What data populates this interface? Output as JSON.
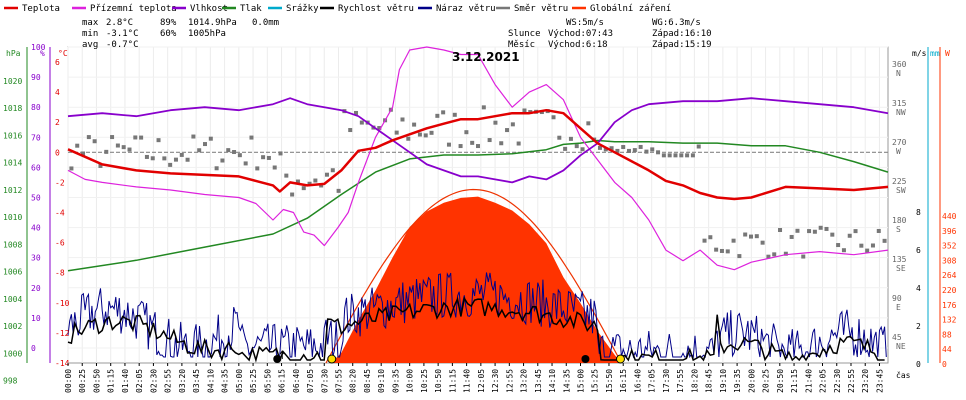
{
  "chart_data": {
    "type": "line",
    "title": "3.12.2021",
    "legend": [
      {
        "label": "Teplota",
        "color": "#e10000"
      },
      {
        "label": "Přízemní teplota",
        "color": "#dd22dd"
      },
      {
        "label": "Vlhkost",
        "color": "#8800cc"
      },
      {
        "label": "Tlak",
        "color": "#228822"
      },
      {
        "label": "Srážky",
        "color": "#00aacc"
      },
      {
        "label": "Rychlost větru",
        "color": "#000000"
      },
      {
        "label": "Náraz větru",
        "color": "#000088"
      },
      {
        "label": "Směr větru",
        "color": "#777777"
      },
      {
        "label": "Globální záření",
        "color": "#ff3300"
      }
    ],
    "stats": {
      "max_label": "max",
      "max_temp": "2.8°C",
      "max_hum": "89%",
      "max_press": "1014.9hPa",
      "rain": "0.0mm",
      "min_label": "min",
      "min_temp": "-3.1°C",
      "min_hum": "60%",
      "min_press": "1005hPa",
      "avg_label": "avg",
      "avg_temp": "-0.7°C",
      "ws": "WS:5m/s",
      "wg": "WG:6.3m/s",
      "sun_label": "Slunce",
      "sunrise": "Východ:07:43",
      "sunset": "Západ:16:10",
      "moon_label": "Měsíc",
      "moonrise": "Východ:6:18",
      "moonset": "Západ:15:19"
    },
    "axes": {
      "hpa_label": "hPa",
      "pct_label": "%",
      "c_label": "°C",
      "ms_label": "m/s",
      "mm_label": "mm",
      "w_label": "W",
      "x_label": "čas",
      "hpa_ticks": [
        "1020",
        "1018",
        "1016",
        "1014",
        "1012",
        "1010",
        "1008",
        "1006",
        "1004",
        "1002",
        "1000",
        "998"
      ],
      "pct_ticks": [
        "100",
        "90",
        "80",
        "70",
        "60",
        "50",
        "40",
        "30",
        "20",
        "10",
        "0"
      ],
      "c_ticks": [
        "6",
        "4",
        "2",
        "0",
        "-2",
        "-4",
        "-6",
        "-8",
        "-10",
        "-12",
        "-14"
      ],
      "dir_ticks": [
        "360",
        "315",
        "270",
        "225",
        "180",
        "135",
        "90",
        "45"
      ],
      "dir_letters": [
        "N",
        "NW",
        "W",
        "SW",
        "S",
        "SE",
        "E",
        "NE"
      ],
      "ms_ticks": [
        "8",
        "6",
        "4",
        "2",
        "0"
      ],
      "w_ticks": [
        "440",
        "396",
        "352",
        "308",
        "264",
        "220",
        "176",
        "132",
        "88",
        "44",
        "0"
      ],
      "x_ticks": [
        "00:00",
        "00:25",
        "00:50",
        "01:15",
        "01:40",
        "02:05",
        "02:30",
        "02:55",
        "03:20",
        "03:45",
        "04:10",
        "04:35",
        "05:00",
        "05:25",
        "05:50",
        "06:15",
        "06:40",
        "07:05",
        "07:30",
        "07:55",
        "08:20",
        "08:45",
        "09:10",
        "09:35",
        "10:00",
        "10:25",
        "10:50",
        "11:15",
        "11:40",
        "12:05",
        "12:30",
        "12:55",
        "13:20",
        "13:45",
        "14:10",
        "14:35",
        "15:00",
        "15:25",
        "15:50",
        "16:15",
        "16:40",
        "17:05",
        "17:30",
        "17:55",
        "18:20",
        "18:45",
        "19:10",
        "19:35",
        "20:00",
        "20:25",
        "20:50",
        "21:15",
        "21:40",
        "22:05",
        "22:30",
        "22:55",
        "23:20",
        "23:45"
      ]
    },
    "series": [
      {
        "name": "Teplota",
        "unit": "°C",
        "x_hours": [
          0,
          0.5,
          1,
          2,
          3,
          4,
          5,
          5.5,
          6,
          6.2,
          6.5,
          7,
          7.5,
          8,
          8.5,
          9,
          9.5,
          10,
          10.5,
          11,
          11.5,
          12,
          12.5,
          13,
          13.5,
          14,
          14.5,
          15,
          15.5,
          16,
          16.5,
          17,
          17.5,
          18,
          18.5,
          19,
          19.5,
          20,
          21,
          22,
          23,
          24
        ],
        "values": [
          0.2,
          -0.3,
          -0.8,
          -1.2,
          -1.4,
          -1.5,
          -1.6,
          -1.9,
          -2.2,
          -2.6,
          -2.0,
          -2.2,
          -2.1,
          -1.2,
          0.1,
          0.3,
          0.8,
          1.2,
          1.6,
          1.9,
          2.2,
          2.2,
          2.4,
          2.6,
          2.6,
          2.8,
          2.6,
          1.6,
          0.6,
          0.0,
          -0.6,
          -1.2,
          -1.9,
          -2.2,
          -2.7,
          -3.0,
          -3.1,
          -3.0,
          -2.3,
          -2.4,
          -2.5,
          -2.3
        ]
      },
      {
        "name": "Přízemní teplota",
        "unit": "°C",
        "x_hours": [
          0,
          0.5,
          1,
          2,
          3,
          4,
          5,
          5.5,
          6,
          6.3,
          6.6,
          6.9,
          7.2,
          7.5,
          7.9,
          8.2,
          8.5,
          9,
          9.5,
          9.7,
          10,
          10.5,
          11,
          11.5,
          12,
          12.5,
          13,
          13.5,
          14,
          14.5,
          15,
          15.5,
          16,
          16.5,
          17,
          17.5,
          18,
          18.5,
          19,
          19.5,
          20,
          21,
          22,
          23,
          24
        ],
        "values": [
          -1.2,
          -1.8,
          -2.0,
          -2.3,
          -2.5,
          -2.8,
          -3.0,
          -3.4,
          -4.5,
          -3.8,
          -4.0,
          -5.3,
          -5.5,
          -6.2,
          -5.0,
          -4.0,
          -2.0,
          1.0,
          3.0,
          5.5,
          6.8,
          7.0,
          6.8,
          6.5,
          6.5,
          4.5,
          3.0,
          4.0,
          4.5,
          3.5,
          1.0,
          -0.5,
          -2.0,
          -3.0,
          -4.5,
          -6.5,
          -7.2,
          -6.5,
          -7.5,
          -7.8,
          -7.3,
          -6.8,
          -6.6,
          -6.8,
          -6.5
        ]
      },
      {
        "name": "Vlhkost",
        "unit": "%",
        "x_hours": [
          0,
          1,
          2,
          3,
          4,
          5,
          6,
          6.5,
          7,
          7.5,
          8,
          8.5,
          9,
          9.5,
          10,
          10.5,
          11,
          11.5,
          12,
          12.5,
          13,
          13.5,
          14,
          14.5,
          15,
          15.5,
          16,
          16.5,
          17,
          18,
          19,
          20,
          21,
          22,
          23,
          24
        ],
        "values": [
          82,
          83,
          82,
          84,
          85,
          84,
          86,
          88,
          86,
          85,
          84,
          82,
          78,
          74,
          70,
          66,
          64,
          62,
          62,
          61,
          60,
          62,
          61,
          64,
          69,
          73,
          80,
          84,
          86,
          87,
          87,
          88,
          87,
          86,
          85,
          83
        ]
      },
      {
        "name": "Tlak",
        "unit": "hPa",
        "x_hours": [
          0,
          2,
          4,
          6,
          7,
          8,
          9,
          10,
          11,
          12,
          13,
          14,
          14.5,
          15,
          15.5,
          16,
          17,
          18,
          19,
          20,
          21,
          22,
          23,
          24
        ],
        "values": [
          1005.0,
          1005.8,
          1006.8,
          1007.8,
          1009.0,
          1010.8,
          1012.5,
          1013.5,
          1013.8,
          1013.8,
          1013.9,
          1014.2,
          1014.6,
          1014.7,
          1014.9,
          1014.8,
          1014.8,
          1014.7,
          1014.7,
          1014.5,
          1014.5,
          1014.0,
          1013.3,
          1012.5
        ]
      },
      {
        "name": "Globální záření",
        "unit": "W",
        "x_hours": [
          7.7,
          8,
          8.5,
          9,
          9.5,
          10,
          10.5,
          11,
          11.5,
          12,
          12.5,
          13,
          13.5,
          14,
          14.5,
          15,
          15.5,
          16,
          16.2
        ],
        "values": [
          0,
          20,
          60,
          110,
          160,
          200,
          225,
          240,
          243,
          245,
          238,
          225,
          205,
          175,
          130,
          90,
          45,
          10,
          0
        ]
      }
    ]
  }
}
